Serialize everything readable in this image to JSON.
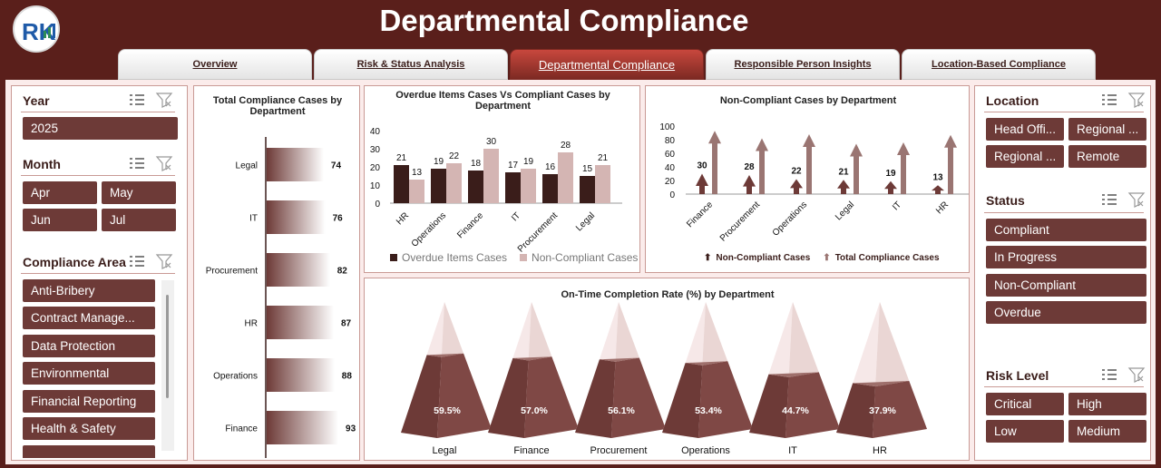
{
  "app": {
    "title": "Departmental Compliance",
    "logo_text": "RK",
    "colors": {
      "brand": "#5a1f1b",
      "chip": "#6d3a37",
      "panel_bg": "#fbeceb",
      "dark_series": "#3a1d1a",
      "light_series": "#d4b5b3"
    }
  },
  "tabs": [
    {
      "label": "Overview",
      "active": false
    },
    {
      "label": "Risk & Status Analysis",
      "active": false
    },
    {
      "label": "Departmental Compliance",
      "active": true
    },
    {
      "label": "Responsible Person Insights",
      "active": false
    },
    {
      "label": "Location-Based Compliance",
      "active": false
    }
  ],
  "left_slicers": {
    "year": {
      "label": "Year",
      "items": [
        "2025"
      ]
    },
    "month": {
      "label": "Month",
      "items": [
        "Apr",
        "May",
        "Jun",
        "Jul"
      ]
    },
    "compliance_area": {
      "label": "Compliance Area",
      "items": [
        "Anti-Bribery",
        "Contract Manage...",
        "Data Protection",
        "Environmental",
        "Financial Reporting",
        "Health & Safety"
      ]
    }
  },
  "right_slicers": {
    "location": {
      "label": "Location",
      "items": [
        "Head Offi...",
        "Regional ...",
        "Regional ...",
        "Remote"
      ]
    },
    "status": {
      "label": "Status",
      "items": [
        "Compliant",
        "In Progress",
        "Non-Compliant",
        "Overdue"
      ]
    },
    "risk_level": {
      "label": "Risk Level",
      "items": [
        "Critical",
        "High",
        "Low",
        "Medium"
      ]
    }
  },
  "chart_data": [
    {
      "type": "bar",
      "orientation": "horizontal",
      "title": "Total Compliance Cases by Department",
      "categories": [
        "Legal",
        "IT",
        "Procurement",
        "HR",
        "Operations",
        "Finance"
      ],
      "values": [
        74,
        76,
        82,
        87,
        88,
        93
      ],
      "xlim": [
        0,
        100
      ]
    },
    {
      "type": "bar",
      "title": "Overdue Items Cases Vs Compliant Cases by Department",
      "categories": [
        "HR",
        "Operations",
        "Finance",
        "IT",
        "Procurement",
        "Legal"
      ],
      "series": [
        {
          "name": "Overdue Items Cases",
          "values": [
            21,
            19,
            18,
            17,
            16,
            15
          ]
        },
        {
          "name": "Non-Compliant Cases",
          "values": [
            13,
            22,
            30,
            19,
            28,
            21
          ]
        }
      ],
      "yticks": [
        "0",
        "10",
        "20",
        "30",
        "40"
      ],
      "ylim": [
        0,
        40
      ],
      "legend": "bottom"
    },
    {
      "type": "bar",
      "title": "Non-Compliant Cases by Department",
      "categories": [
        "Finance",
        "Procurement",
        "Operations",
        "Legal",
        "IT",
        "HR"
      ],
      "series": [
        {
          "name": "Non-Compliant Cases",
          "values": [
            30,
            28,
            22,
            21,
            19,
            13
          ]
        },
        {
          "name": "Total Compliance Cases",
          "values": [
            93,
            82,
            88,
            74,
            76,
            87
          ]
        }
      ],
      "yticks": [
        "0",
        "20",
        "40",
        "60",
        "80",
        "100"
      ],
      "ylim": [
        0,
        100
      ],
      "legend": "bottom"
    },
    {
      "type": "bar",
      "shape": "pyramid",
      "title": "On-Time Completion Rate (%) by Department",
      "categories": [
        "Legal",
        "Finance",
        "Procurement",
        "Operations",
        "IT",
        "HR"
      ],
      "values": [
        59.5,
        57.0,
        56.1,
        53.4,
        44.7,
        37.9
      ],
      "labels": [
        "59.5%",
        "57.0%",
        "56.1%",
        "53.4%",
        "44.7%",
        "37.9%"
      ],
      "ylim": [
        0,
        100
      ]
    }
  ]
}
